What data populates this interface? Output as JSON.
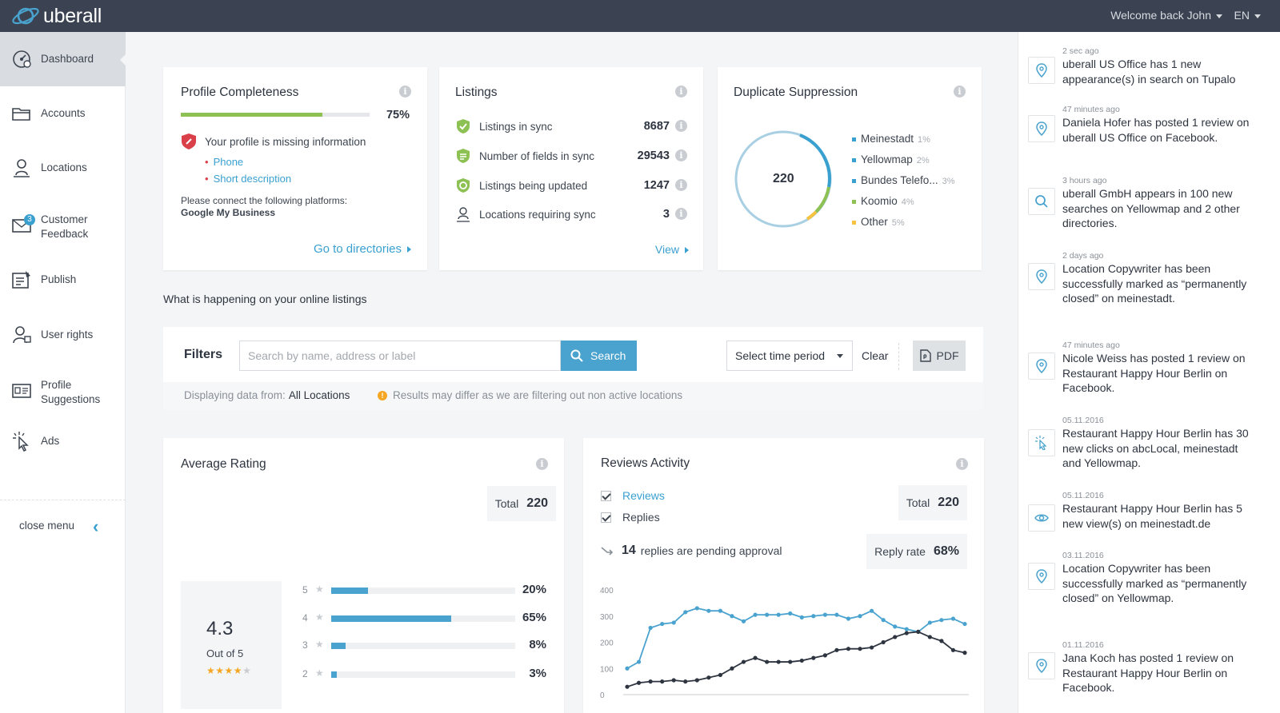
{
  "header": {
    "logo_text": "uberall",
    "welcome": "Welcome back John",
    "language": "EN"
  },
  "sidebar": {
    "items": [
      {
        "label": "Dashboard",
        "icon": "dashboard-icon",
        "active": true
      },
      {
        "label": "Accounts",
        "icon": "folder-icon"
      },
      {
        "label": "Locations",
        "icon": "location-person-icon"
      },
      {
        "label": "Customer Feedback",
        "icon": "feedback-mail-icon",
        "badge": "3"
      },
      {
        "label": "Publish",
        "icon": "publish-icon"
      },
      {
        "label": "User rights",
        "icon": "user-rights-icon"
      },
      {
        "label": "Profile Suggestions",
        "icon": "profile-card-icon"
      },
      {
        "label": "Ads",
        "icon": "click-cursor-icon"
      }
    ],
    "close_menu": "close menu"
  },
  "profile_completeness": {
    "title": "Profile Completeness",
    "percent": 75,
    "percent_label": "75%",
    "missing_title": "Your profile is missing information",
    "missing_items": [
      "Phone",
      "Short description"
    ],
    "connect_text": "Please connect the following platforms:",
    "connect_platform": "Google My Business",
    "link": "Go to directories"
  },
  "listings": {
    "title": "Listings",
    "rows": [
      {
        "label": "Listings in sync",
        "value": "8687",
        "icon": "shield-check-icon"
      },
      {
        "label": "Number of fields in sync",
        "value": "29543",
        "icon": "shield-list-icon"
      },
      {
        "label": "Listings being updated",
        "value": "1247",
        "icon": "shield-refresh-icon"
      },
      {
        "label": "Locations requiring sync",
        "value": "3",
        "icon": "location-person-icon"
      }
    ],
    "link": "View"
  },
  "duplicate_suppression": {
    "title": "Duplicate Suppression",
    "total": "220",
    "legend": [
      {
        "name": "Meinestadt",
        "pct": "1%",
        "color": "#3aa0d0"
      },
      {
        "name": "Yellowmap",
        "pct": "2%",
        "color": "#3aa0d0"
      },
      {
        "name": "Bundes Telefo...",
        "pct": "3%",
        "color": "#3aa0d0"
      },
      {
        "name": "Koomio",
        "pct": "4%",
        "color": "#8dc153"
      },
      {
        "name": "Other",
        "pct": "5%",
        "color": "#f5c242"
      }
    ]
  },
  "section_label": "What is happening on your online listings",
  "filters": {
    "label": "Filters",
    "search_placeholder": "Search by name, address or label",
    "search_button": "Search",
    "time_select": "Select time period",
    "clear": "Clear",
    "pdf": "PDF",
    "displaying_label": "Displaying data from:",
    "displaying_value": "All Locations",
    "notice": "Results may differ as we are filtering out non active locations"
  },
  "average_rating": {
    "title": "Average Rating",
    "total_label": "Total",
    "total_value": "220",
    "rating": "4.3",
    "out_of": "Out of 5",
    "stars_filled": 4,
    "stars_total": 5,
    "distribution": [
      {
        "stars": "5",
        "pct": 20,
        "label": "20%"
      },
      {
        "stars": "4",
        "pct": 65,
        "label": "65%"
      },
      {
        "stars": "3",
        "pct": 8,
        "label": "8%"
      },
      {
        "stars": "2",
        "pct": 3,
        "label": "3%"
      }
    ]
  },
  "reviews_activity": {
    "title": "Reviews Activity",
    "checkbox_reviews": "Reviews",
    "checkbox_replies": "Replies",
    "total_label": "Total",
    "total_value": "220",
    "pending_count": "14",
    "pending_text": "replies are pending approval",
    "reply_rate_label": "Reply rate",
    "reply_rate_value": "68%"
  },
  "chart_data": {
    "type": "line",
    "title": "Reviews Activity",
    "xlabel": "",
    "ylabel": "",
    "ylim": [
      0,
      400
    ],
    "yticks": [
      "400",
      "300",
      "200",
      "100",
      "0"
    ],
    "grid": false,
    "series": [
      {
        "name": "Reviews",
        "color": "#4aa3cf",
        "values": [
          100,
          125,
          255,
          270,
          275,
          315,
          330,
          320,
          320,
          300,
          280,
          305,
          305,
          305,
          310,
          295,
          300,
          305,
          305,
          290,
          300,
          320,
          285,
          260,
          250,
          240,
          275,
          285,
          290,
          270
        ]
      },
      {
        "name": "Replies",
        "color": "#2e3540",
        "values": [
          30,
          45,
          50,
          50,
          55,
          50,
          55,
          65,
          75,
          100,
          125,
          140,
          125,
          125,
          125,
          130,
          140,
          150,
          170,
          175,
          175,
          180,
          200,
          220,
          235,
          240,
          220,
          205,
          170,
          160
        ]
      }
    ]
  },
  "feed": [
    {
      "time": "2 sec ago",
      "text": "uberall US Office has 1 new appearance(s) in search on Tupalo",
      "icon": "map-pin-icon"
    },
    {
      "time": "47 minutes ago",
      "text": "Daniela Hofer has posted 1 review on uberall US Office on Facebook.",
      "icon": "map-pin-icon"
    },
    {
      "time": "3 hours ago",
      "text": "uberall GmbH appears in 100 new searches on Yellowmap and 2 other directories.",
      "icon": "search-icon"
    },
    {
      "time": "2 days ago",
      "text": "Location Copywriter has been successfully marked as “permanently closed” on meinestadt.",
      "icon": "map-pin-icon"
    },
    {
      "time": "47 minutes ago",
      "text": "Nicole Weiss has posted 1 review on Restaurant Happy Hour Berlin on Facebook.",
      "icon": "map-pin-icon"
    },
    {
      "time": "05.11.2016",
      "text": "Restaurant Happy Hour Berlin has 30 new clicks on abcLocal, meinestadt and Yellowmap.",
      "icon": "click-cursor-icon"
    },
    {
      "time": "05.11.2016",
      "text": "Restaurant Happy Hour Berlin has 5 new view(s) on meinestadt.de",
      "icon": "eye-icon"
    },
    {
      "time": "03.11.2016",
      "text": "Location Copywriter has been successfully marked as “permanently closed” on Yellowmap.",
      "icon": "map-pin-icon"
    },
    {
      "time": "01.11.2016",
      "text": "Jana Koch has posted 1 review on Restaurant Happy Hour Berlin on Facebook.",
      "icon": "map-pin-icon"
    }
  ]
}
